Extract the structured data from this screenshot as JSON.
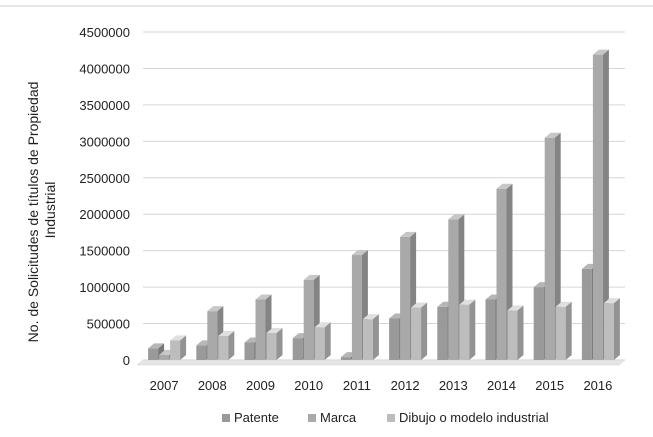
{
  "chart_data": {
    "type": "bar",
    "title": "",
    "ylabel_lines": [
      "No. de Solicitudes de títulos de Propiedad",
      "Industrial"
    ],
    "xlabel": "",
    "categories": [
      "2007",
      "2008",
      "2009",
      "2010",
      "2011",
      "2012",
      "2013",
      "2014",
      "2015",
      "2016"
    ],
    "series": [
      {
        "name": "Patente",
        "values": [
          160000,
          200000,
          240000,
          300000,
          40000,
          570000,
          730000,
          830000,
          1000000,
          1250000
        ]
      },
      {
        "name": "Marca",
        "values": [
          70000,
          670000,
          830000,
          1100000,
          1440000,
          1690000,
          1930000,
          2350000,
          3050000,
          4190000
        ]
      },
      {
        "name": "Dibujo o modelo industrial",
        "values": [
          270000,
          330000,
          370000,
          450000,
          560000,
          720000,
          760000,
          680000,
          730000,
          780000
        ]
      }
    ],
    "yticks": [
      "0",
      "500000",
      "1000000",
      "1500000",
      "2000000",
      "2500000",
      "3000000",
      "3500000",
      "4000000",
      "4500000"
    ],
    "ylim": [
      0,
      4500000
    ],
    "grid": true,
    "legend_position": "bottom",
    "bar_style": "3d",
    "colors": {
      "Patente": "#9a9a9a",
      "Marca": "#a9a9a9",
      "Dibujo o modelo industrial": "#bdbdbd"
    }
  }
}
